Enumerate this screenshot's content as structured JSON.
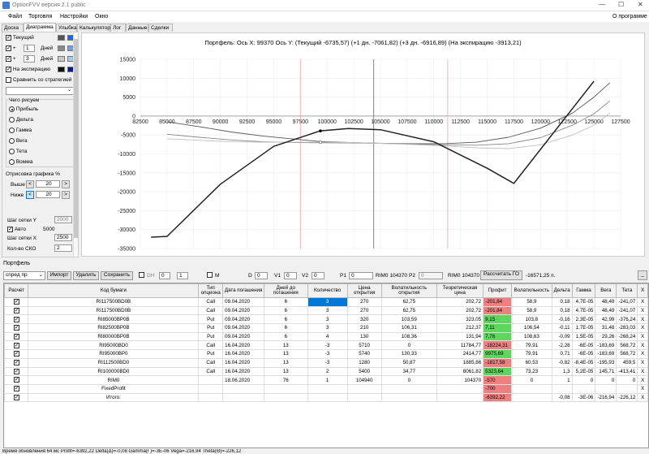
{
  "window": {
    "title": "OptionFVV версия 2.1 public",
    "minimize": "—",
    "maximize": "☐",
    "close": "✕"
  },
  "menu": {
    "items": [
      "Файл",
      "Торговля",
      "Настройки",
      "Окно"
    ],
    "about": "О программе"
  },
  "tabs": [
    "Доска",
    "Диаграмма",
    "Улыбка",
    "Калькулятор",
    "Лог",
    "Данные",
    "Сделки"
  ],
  "left": {
    "current_label": "Текущий",
    "plus1": {
      "sign": "+",
      "value": "1",
      "unit": "Дней"
    },
    "plus3": {
      "sign": "+",
      "value": "3",
      "unit": "Дней"
    },
    "expiry_label": "На экспирацию",
    "compare_label": "Сравнить со стратегией",
    "what_label": "Чего рисуем",
    "radios": [
      "Прибыль",
      "Дельта",
      "Гамма",
      "Вега",
      "Тета",
      "Вомма"
    ],
    "scale_label": "Отрисовка графика %",
    "above_label": "Выше",
    "above_value": "20",
    "below_label": "Ниже",
    "below_value": "20",
    "grid_y_label": "Шаг сетки Y",
    "grid_y_value": "2000",
    "auto_label": "Авто",
    "auto_value": "5000",
    "grid_x_label": "Шаг сетки X",
    "grid_x_value": "2500",
    "sko_label": "Кол-во СКО",
    "sko_value": "2",
    "left_arrow": "<",
    "right_arrow": ">"
  },
  "chart_title": "Портфель: Ось X:  99370 Ось Y:  (Текущий -6735,57)  (+1 дн. -7061,82)  (+3 дн. -6916,89)  (На экспирацию -3913,21)",
  "chart_data": {
    "type": "line",
    "xlim": [
      82500,
      127500
    ],
    "ylim": [
      -35000,
      15000
    ],
    "x_ticks": [
      82500,
      85000,
      87500,
      90000,
      92500,
      95000,
      97500,
      100000,
      102500,
      105000,
      107500,
      110000,
      112500,
      115000,
      117500,
      120000,
      122500,
      125000,
      127500
    ],
    "y_ticks": [
      15000,
      10000,
      5000,
      0,
      -5000,
      -10000,
      -15000,
      -20000,
      -25000,
      -30000,
      -35000
    ],
    "vlines": [
      {
        "x": 104370,
        "color": "#666666"
      },
      {
        "x": 97500,
        "color": "#f4a0a0"
      },
      {
        "x": 111300,
        "color": "#f4a0a0"
      }
    ],
    "series": [
      {
        "name": "Текущий",
        "color": "#555555",
        "x": [
          85000,
          88000,
          91000,
          94000,
          97000,
          99370,
          102000,
          105000,
          108000,
          111000,
          114000,
          117000,
          120000,
          123000,
          125000,
          126500
        ],
        "y": [
          -1500,
          -2800,
          -4200,
          -5300,
          -6100,
          -6735,
          -7000,
          -7200,
          -7300,
          -7300,
          -6900,
          -5600,
          -3200,
          800,
          5000,
          8800
        ]
      },
      {
        "name": "+1 дн.",
        "color": "#888888",
        "x": [
          85000,
          88000,
          91000,
          94000,
          97000,
          99370,
          102000,
          105000,
          108000,
          111000,
          114000,
          117000,
          120000,
          123000,
          125000,
          126500
        ],
        "y": [
          -4800,
          -5600,
          -6300,
          -6800,
          -7000,
          -7060,
          -7100,
          -7200,
          -7400,
          -7600,
          -7700,
          -7300,
          -5700,
          -2400,
          600,
          4000
        ]
      },
      {
        "name": "+3 дн.",
        "color": "#c0c0c0",
        "x": [
          85000,
          88000,
          91000,
          94000,
          97000,
          99370,
          102000,
          105000,
          108000,
          111000,
          114000,
          117000,
          120000,
          123000,
          125000,
          126500
        ],
        "y": [
          -6000,
          -6400,
          -6800,
          -6900,
          -6900,
          -6920,
          -7000,
          -7200,
          -7500,
          -7900,
          -8400,
          -8600,
          -7600,
          -5000,
          -2400,
          800
        ]
      },
      {
        "name": "На экспирацию",
        "color": "#222222",
        "x": [
          83500,
          85000,
          90000,
          95000,
          99370,
          102000,
          105000,
          110000,
          115000,
          117500,
          125000
        ],
        "y": [
          -32000,
          -31800,
          -18000,
          -8000,
          -3913,
          -3300,
          -3600,
          -6800,
          -13800,
          -17800,
          9200
        ]
      }
    ]
  },
  "portfolio": {
    "title": "Портфель",
    "strategy_select": "спред пр",
    "import": "Импорт",
    "delete": "Удалить",
    "save": "Сохранить",
    "dh": "DH",
    "dh_v1": "0",
    "dh_v2": "1",
    "m": "M",
    "d_label": "D",
    "d_value": "0",
    "v1_label": "V1",
    "v1_value": "0",
    "v2_label": "V2",
    "v2_value": "0",
    "p1_label": "P1",
    "p1_value": "0",
    "p1_code": "RIM0 104370",
    "p2_label": "P2",
    "p2_value": "0",
    "p2_code": "RIM0 104370",
    "calc_go": "Рассчитать ГО",
    "go_value": "-16571,25 п.",
    "min_btn": "_"
  },
  "table": {
    "headers": [
      "Расчет",
      "Код бумаги",
      "Тип опциона",
      "Дата погашения",
      "Дней до погашения",
      "Количество",
      "Цена открытия",
      "Волатильность открытия",
      "Теоретическая цена",
      "Профит",
      "Волатильность",
      "Дельта",
      "Гамма",
      "Вега",
      "Тета",
      "X"
    ],
    "rows": [
      {
        "calc": true,
        "code": "RI117500BD0B",
        "type": "Call",
        "date": "09.04.2020",
        "days": "6",
        "qty": "3",
        "price": "270",
        "vol_open": "62,75",
        "theor": "202,72",
        "profit": "-201,84",
        "vol": "58,9",
        "delta": "0,18",
        "gamma": "4,7E-05",
        "vega": "48,49",
        "theta": "-241,07",
        "x": "X",
        "profit_state": "neg",
        "selected": true
      },
      {
        "calc": true,
        "code": "RI117500BD0B",
        "type": "Call",
        "date": "09.04.2020",
        "days": "6",
        "qty": "3",
        "price": "270",
        "vol_open": "62,75",
        "theor": "202,72",
        "profit": "-201,84",
        "vol": "58,9",
        "delta": "0,18",
        "gamma": "4,7E-05",
        "vega": "48,49",
        "theta": "-241,07",
        "x": "X",
        "profit_state": "neg",
        "selected": false
      },
      {
        "calc": true,
        "code": "RI85000BP0B",
        "type": "Put",
        "date": "09.04.2020",
        "days": "6",
        "qty": "3",
        "price": "320",
        "vol_open": "103,59",
        "theor": "323,05",
        "profit": "9,15",
        "vol": "103,8",
        "delta": "-0,16",
        "gamma": "2,3E-05",
        "vega": "42,99",
        "theta": "-376,24",
        "x": "X",
        "profit_state": "pos",
        "selected": false
      },
      {
        "calc": true,
        "code": "RI82500BP0B",
        "type": "Put",
        "date": "09.04.2020",
        "days": "6",
        "qty": "3",
        "price": "210",
        "vol_open": "106,31",
        "theor": "212,37",
        "profit": "7,11",
        "vol": "106,54",
        "delta": "-0,11",
        "gamma": "1,7E-05",
        "vega": "31,48",
        "theta": "-283,03",
        "x": "X",
        "profit_state": "pos",
        "selected": false
      },
      {
        "calc": true,
        "code": "RI80000BP0B",
        "type": "Put",
        "date": "09.04.2020",
        "days": "6",
        "qty": "4",
        "price": "130",
        "vol_open": "108,36",
        "theor": "131,94",
        "profit": "7,76",
        "vol": "108,63",
        "delta": "-0,09",
        "gamma": "1,5E-05",
        "vega": "29,26",
        "theta": "-268,24",
        "x": "X",
        "profit_state": "pos",
        "selected": false
      },
      {
        "calc": true,
        "code": "RI95000BD0",
        "type": "Call",
        "date": "16.04.2020",
        "days": "13",
        "qty": "-3",
        "price": "5710",
        "vol_open": "0",
        "theor": "11784,77",
        "profit": "-18224,31",
        "vol": "79,91",
        "delta": "-2,28",
        "gamma": "-6E-05",
        "vega": "-183,69",
        "theta": "568,72",
        "x": "X",
        "profit_state": "neg",
        "selected": false
      },
      {
        "calc": true,
        "code": "RI95000BP0",
        "type": "Put",
        "date": "16.04.2020",
        "days": "13",
        "qty": "-3",
        "price": "5740",
        "vol_open": "130,33",
        "theor": "2414,77",
        "profit": "9975,69",
        "vol": "79,91",
        "delta": "0,71",
        "gamma": "-6E-05",
        "vega": "-183,69",
        "theta": "568,72",
        "x": "X",
        "profit_state": "pos",
        "selected": false
      },
      {
        "calc": true,
        "code": "RI112500BD0",
        "type": "Call",
        "date": "16.04.2020",
        "days": "13",
        "qty": "-3",
        "price": "1280",
        "vol_open": "50,87",
        "theor": "1885,86",
        "profit": "-1817,58",
        "vol": "60,53",
        "delta": "-0,82",
        "gamma": "-8,4E-05",
        "vega": "-195,93",
        "theta": "459,5",
        "x": "X",
        "profit_state": "neg",
        "selected": false
      },
      {
        "calc": true,
        "code": "RI100000BD0",
        "type": "Call",
        "date": "16.04.2020",
        "days": "13",
        "qty": "2",
        "price": "5400",
        "vol_open": "34,77",
        "theor": "8061,82",
        "profit": "5323,64",
        "vol": "73,23",
        "delta": "1,3",
        "gamma": "5,2E-05",
        "vega": "145,71",
        "theta": "-413,41",
        "x": "X",
        "profit_state": "pos",
        "selected": false
      },
      {
        "calc": true,
        "code": "RIM0",
        "type": "",
        "date": "18.06.2020",
        "days": "76",
        "qty": "1",
        "price": "104940",
        "vol_open": "0",
        "theor": "104370",
        "profit": "-570",
        "vol": "0",
        "delta": "1",
        "gamma": "0",
        "vega": "0",
        "theta": "0",
        "x": "X",
        "profit_state": "neg",
        "selected": false
      },
      {
        "calc": true,
        "code": "FixedProfit",
        "type": "",
        "date": "",
        "days": "",
        "qty": "",
        "price": "",
        "vol_open": "",
        "theor": "",
        "profit": "-700",
        "vol": "",
        "delta": "",
        "gamma": "",
        "vega": "",
        "theta": "",
        "x": "X",
        "profit_state": "neg",
        "selected": false
      },
      {
        "calc": true,
        "code": "Итого:",
        "type": "",
        "date": "",
        "days": "",
        "qty": "",
        "price": "",
        "vol_open": "",
        "theor": "",
        "profit": "-6392,22",
        "vol": "",
        "delta": "-0,08",
        "gamma": "-3E-06",
        "vega": "-216,94",
        "theta": "-226,12",
        "x": "X",
        "profit_state": "neg",
        "selected": false
      }
    ]
  },
  "status": "Время обновления 64 мс  Profit=-6392,22 Delta(Δ)=-0,08 Gamma(Γ)=-3E-06 Vega=-216,94 Theta(Θ)=-226,12"
}
